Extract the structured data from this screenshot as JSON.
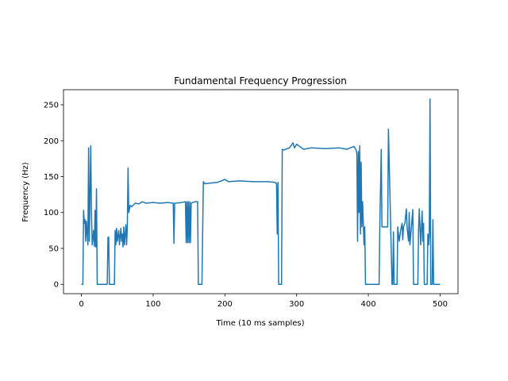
{
  "chart_data": {
    "type": "line",
    "title": "Fundamental Frequency Progression",
    "xlabel": "Time (10 ms samples)",
    "ylabel": "Frequency (Hz)",
    "color": "#1f77b4",
    "xlim": [
      -25,
      525
    ],
    "ylim": [
      -13,
      271
    ],
    "xticks": [
      0,
      100,
      200,
      300,
      400,
      500
    ],
    "yticks": [
      0,
      50,
      100,
      150,
      200,
      250
    ],
    "x": [
      0,
      2,
      3,
      4,
      5,
      6,
      7,
      9,
      10,
      11,
      13,
      14,
      15,
      17,
      18,
      19,
      20,
      21,
      22,
      36,
      37,
      38,
      39,
      46,
      47,
      48,
      49,
      50,
      52,
      53,
      55,
      56,
      57,
      58,
      59,
      60,
      62,
      63,
      64,
      65,
      66,
      68,
      70,
      75,
      80,
      85,
      90,
      100,
      110,
      120,
      128,
      129,
      130,
      140,
      145,
      146,
      147,
      148,
      149,
      150,
      151,
      152,
      153,
      158,
      162,
      163,
      168,
      170,
      172,
      180,
      190,
      200,
      205,
      220,
      240,
      260,
      270,
      272,
      273,
      274,
      275,
      279,
      280,
      282,
      290,
      295,
      297,
      300,
      310,
      320,
      340,
      360,
      370,
      380,
      383,
      384,
      385,
      386,
      387,
      388,
      389,
      390,
      391,
      392,
      394,
      395,
      396,
      415,
      416,
      418,
      419,
      427,
      428,
      433,
      434,
      435,
      436,
      440,
      441,
      443,
      445,
      447,
      448,
      449,
      451,
      453,
      454,
      456,
      457,
      458,
      462,
      463,
      464,
      465,
      469,
      470,
      471,
      473,
      475,
      476,
      477,
      478,
      482,
      483,
      484,
      485,
      486,
      487,
      489,
      490,
      491,
      492,
      500
    ],
    "values": [
      0,
      0,
      103,
      85,
      90,
      60,
      88,
      55,
      190,
      60,
      193,
      100,
      55,
      75,
      53,
      103,
      52,
      133,
      0,
      0,
      65,
      66,
      0,
      0,
      75,
      55,
      78,
      60,
      75,
      55,
      78,
      60,
      70,
      52,
      80,
      55,
      83,
      55,
      80,
      162,
      100,
      110,
      108,
      113,
      112,
      115,
      113,
      114,
      113,
      114,
      113,
      57,
      113,
      114,
      115,
      58,
      115,
      58,
      115,
      58,
      115,
      58,
      113,
      115,
      115,
      0,
      0,
      143,
      140,
      141,
      142,
      146,
      143,
      144,
      143,
      143,
      142,
      140,
      70,
      142,
      0,
      0,
      188,
      187,
      190,
      197,
      190,
      195,
      188,
      190,
      189,
      190,
      188,
      192,
      187,
      182,
      60,
      185,
      100,
      193,
      70,
      170,
      80,
      115,
      55,
      80,
      0,
      0,
      80,
      188,
      80,
      80,
      216,
      0,
      0,
      73,
      0,
      0,
      80,
      60,
      75,
      85,
      62,
      80,
      85,
      105,
      80,
      60,
      100,
      55,
      104,
      0,
      0,
      0,
      0,
      75,
      105,
      55,
      102,
      60,
      85,
      0,
      0,
      70,
      55,
      70,
      258,
      0,
      0,
      90,
      0,
      0,
      0
    ]
  }
}
